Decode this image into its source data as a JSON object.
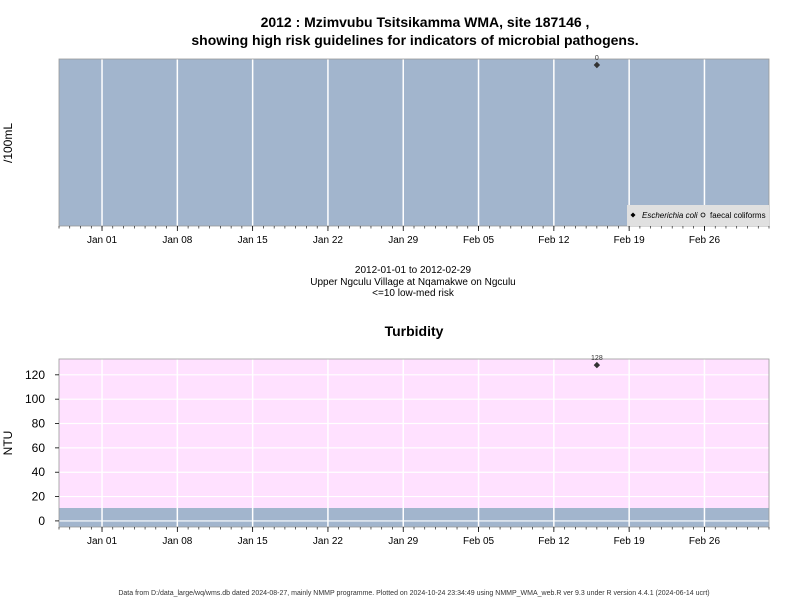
{
  "header": {
    "title_line1": "2012 : Mzimvubu Tsitsikamma WMA, site 187146 ,",
    "title_line2": "showing high risk guidelines for indicators of microbial pathogens."
  },
  "x_tick_labels": [
    "Jan 01",
    "Jan 08",
    "Jan 15",
    "Jan 22",
    "Jan 29",
    "Feb 05",
    "Feb 12",
    "Feb 19",
    "Feb 26"
  ],
  "caption": {
    "date_range": "2012-01-01 to 2012-02-29",
    "location": "Upper Ngculu Village at Nqamakwe on Ngculu",
    "risk": "<=10 low-med risk"
  },
  "footer": "Data from D:/data_large/wq/wms.db dated 2024-08-27, mainly NMMP programme. Plotted on 2024-10-24 23:34:49 using NMMP_WMA_web.R ver 9.3 under R version 4.4.1 (2024-06-14 ucrt)",
  "colors": {
    "panel_bg_micro": "#a2b5cd",
    "panel_bg_turb": "#ffe1ff",
    "low_band": "#a2b5cd",
    "grid": "#ffffff",
    "point": "#333333",
    "legend_bg": "#e0e0e0"
  },
  "chart_data": [
    {
      "type": "scatter",
      "title": "",
      "xlabel": "",
      "ylabel": "/100mL",
      "x_range": [
        "2011-12-28",
        "2012-03-03"
      ],
      "x_ticks": [
        "2012-01-01",
        "2012-01-08",
        "2012-01-15",
        "2012-01-22",
        "2012-01-29",
        "2012-02-05",
        "2012-02-12",
        "2012-02-19",
        "2012-02-26"
      ],
      "series": [
        {
          "name": "Escherichia coli",
          "marker": "filled-diamond",
          "points": [
            {
              "x": "2012-02-16",
              "y": 0,
              "label": "0"
            }
          ]
        },
        {
          "name": "faecal coliforms",
          "marker": "open-circle",
          "points": []
        }
      ],
      "legend": "bottom-right",
      "grid": true
    },
    {
      "type": "scatter",
      "title": "Turbidity",
      "xlabel": "",
      "ylabel": "NTU",
      "x_range": [
        "2011-12-28",
        "2012-03-03"
      ],
      "x_ticks": [
        "2012-01-01",
        "2012-01-08",
        "2012-01-15",
        "2012-01-22",
        "2012-01-29",
        "2012-02-05",
        "2012-02-12",
        "2012-02-19",
        "2012-02-26"
      ],
      "y_ticks": [
        0,
        20,
        40,
        60,
        80,
        100,
        120
      ],
      "ylim": [
        -5,
        133
      ],
      "low_risk_band": [
        -5,
        10
      ],
      "series": [
        {
          "name": "",
          "marker": "filled-diamond",
          "points": [
            {
              "x": "2012-02-16",
              "y": 128,
              "label": "128"
            }
          ]
        }
      ],
      "grid": true
    }
  ]
}
